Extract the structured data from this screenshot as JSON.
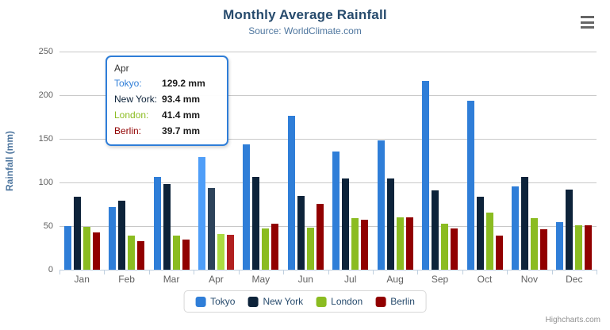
{
  "chart": {
    "title": "Monthly Average Rainfall",
    "subtitle": "Source: WorldClimate.com",
    "y_axis_title": "Rainfall (mm)",
    "credits": "Highcharts.com"
  },
  "colors": {
    "title": "#274b6d",
    "subtitle": "#4d759e",
    "axis_title": "#4d759e",
    "tick_label": "#606060",
    "grid_line": "#c8c8c8",
    "axis_line": "#c0d0e0",
    "legend_text": "#274b6d",
    "legend_border": "#d8d8d8",
    "credits": "#909090",
    "menu_icon": "#666666"
  },
  "chart_data": {
    "type": "bar",
    "title": "Monthly Average Rainfall",
    "subtitle": "Source: WorldClimate.com",
    "xlabel": "",
    "ylabel": "Rainfall (mm)",
    "ylim": [
      0,
      250
    ],
    "y_tick_interval": 50,
    "grid": true,
    "legend_position": "bottom-center",
    "categories": [
      "Jan",
      "Feb",
      "Mar",
      "Apr",
      "May",
      "Jun",
      "Jul",
      "Aug",
      "Sep",
      "Oct",
      "Nov",
      "Dec"
    ],
    "series": [
      {
        "name": "Tokyo",
        "color": "#2f7ed8",
        "hover_color": "#4f9ef8",
        "values": [
          49.9,
          71.5,
          106.4,
          129.2,
          144.0,
          176.0,
          135.6,
          148.5,
          216.4,
          194.1,
          95.6,
          54.4
        ]
      },
      {
        "name": "New York",
        "color": "#0d233a",
        "hover_color": "#2d435a",
        "values": [
          83.6,
          78.8,
          98.5,
          93.4,
          106.0,
          84.5,
          105.0,
          104.3,
          91.2,
          83.5,
          106.6,
          92.3
        ]
      },
      {
        "name": "London",
        "color": "#8bbc21",
        "hover_color": "#abdc41",
        "values": [
          48.9,
          38.8,
          39.3,
          41.4,
          47.0,
          48.3,
          59.0,
          59.6,
          52.4,
          65.2,
          59.3,
          51.2
        ]
      },
      {
        "name": "Berlin",
        "color": "#910000",
        "hover_color": "#b12020",
        "values": [
          42.4,
          33.2,
          34.5,
          39.7,
          52.6,
          75.5,
          57.4,
          60.4,
          47.6,
          39.1,
          46.8,
          51.1
        ]
      }
    ],
    "hovered_category": "Apr",
    "hovered_category_index": 3
  },
  "tooltip": {
    "header": "Apr",
    "border_color": "#2f7ed8",
    "rows": [
      {
        "label": "Tokyo:",
        "value": "129.2 mm",
        "color": "#2f7ed8"
      },
      {
        "label": "New York:",
        "value": "93.4 mm",
        "color": "#0d233a"
      },
      {
        "label": "London:",
        "value": "41.4 mm",
        "color": "#8bbc21"
      },
      {
        "label": "Berlin:",
        "value": "39.7 mm",
        "color": "#910000"
      }
    ]
  },
  "legend": {
    "items": [
      {
        "label": "Tokyo",
        "color": "#2f7ed8"
      },
      {
        "label": "New York",
        "color": "#0d233a"
      },
      {
        "label": "London",
        "color": "#8bbc21"
      },
      {
        "label": "Berlin",
        "color": "#910000"
      }
    ]
  }
}
